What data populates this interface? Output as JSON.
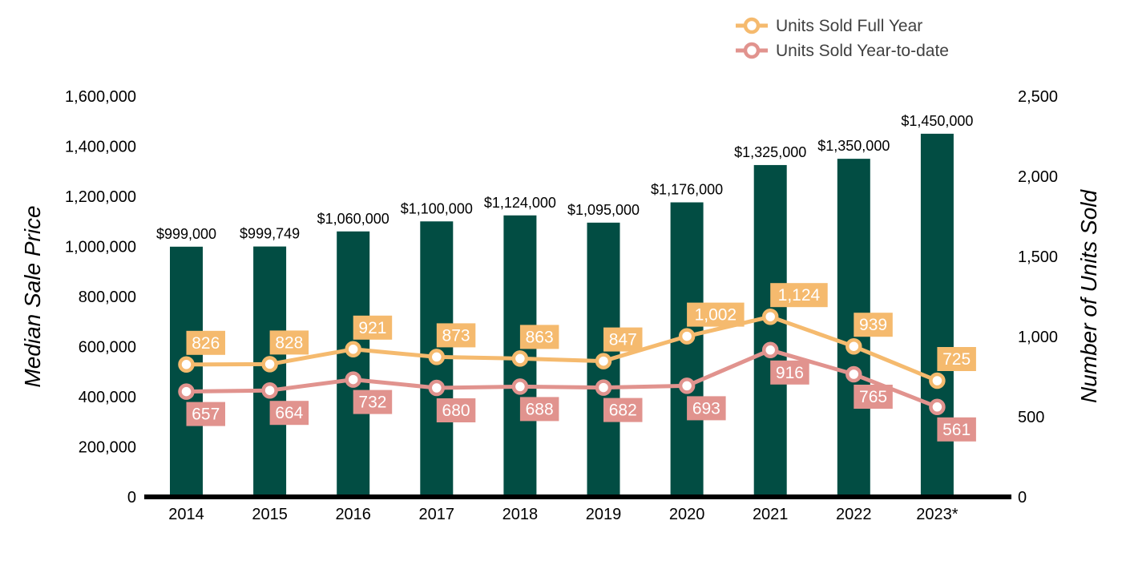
{
  "chart_data": {
    "type": "bar",
    "title": "",
    "categories": [
      "2014",
      "2015",
      "2016",
      "2017",
      "2018",
      "2019",
      "2020",
      "2021",
      "2022",
      "2023*"
    ],
    "bar_series": {
      "values": [
        999000,
        999749,
        1060000,
        1100000,
        1124000,
        1095000,
        1176000,
        1325000,
        1350000,
        1450000
      ],
      "labels": [
        "$999,000",
        "$999,749",
        "$1,060,000",
        "$1,100,000",
        "$1,124,000",
        "$1,095,000",
        "$1,176,000",
        "$1,325,000",
        "$1,350,000",
        "$1,450,000"
      ],
      "color": "#024D43",
      "axis": "left"
    },
    "line_series": [
      {
        "name": "Units Sold Full Year",
        "values": [
          826,
          828,
          921,
          873,
          863,
          847,
          1002,
          1124,
          939,
          725
        ],
        "labels": [
          "826",
          "828",
          "921",
          "873",
          "863",
          "847",
          "1,002",
          "1,124",
          "939",
          "725"
        ],
        "color": "#F5BA6E",
        "label_position": "above",
        "axis": "right"
      },
      {
        "name": "Units Sold Year-to-date",
        "values": [
          657,
          664,
          732,
          680,
          688,
          682,
          693,
          916,
          765,
          561
        ],
        "labels": [
          "657",
          "664",
          "732",
          "680",
          "688",
          "682",
          "693",
          "916",
          "765",
          "561"
        ],
        "color": "#E1938E",
        "label_position": "below",
        "axis": "right"
      }
    ],
    "y_left": {
      "label": "Median Sale Price",
      "ylim": [
        0,
        1600000
      ],
      "ticks": [
        "0",
        "200,000",
        "400,000",
        "600,000",
        "800,000",
        "1,000,000",
        "1,200,000",
        "1,400,000",
        "1,600,000"
      ],
      "tick_values": [
        0,
        200000,
        400000,
        600000,
        800000,
        1000000,
        1200000,
        1400000,
        1600000
      ]
    },
    "y_right": {
      "label": "Number of Units Sold",
      "ylim": [
        0,
        2500
      ],
      "ticks": [
        "0",
        "500",
        "1,000",
        "1,500",
        "2,000",
        "2,500"
      ],
      "tick_values": [
        0,
        500,
        1000,
        1500,
        2000,
        2500
      ]
    },
    "grid": false,
    "legend_position": "top-right"
  }
}
